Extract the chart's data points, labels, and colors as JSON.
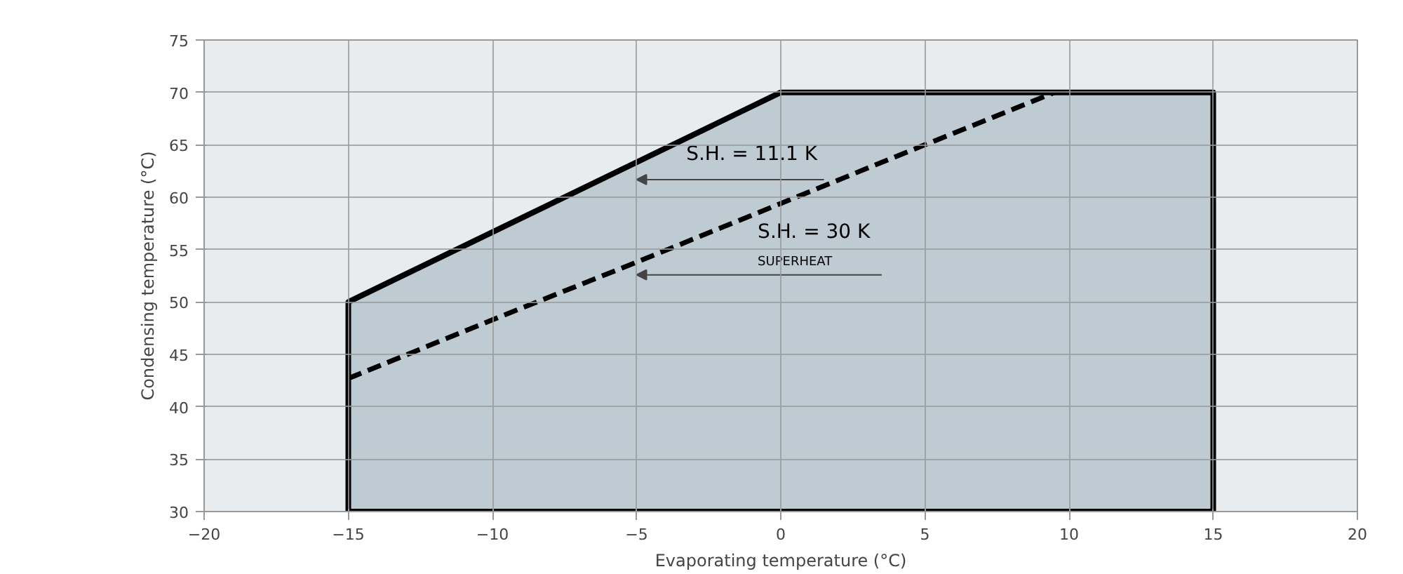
{
  "chart_data": {
    "type": "line",
    "xlabel": "Evaporating temperature (°C)",
    "ylabel": "Condensing temperature (°C)",
    "xlim": [
      -20,
      20
    ],
    "ylim": [
      30,
      75
    ],
    "xticks": [
      -20,
      -15,
      -10,
      -5,
      0,
      5,
      10,
      15,
      20
    ],
    "yticks": [
      30,
      35,
      40,
      45,
      50,
      55,
      60,
      65,
      70,
      75
    ],
    "grid": true,
    "series": [
      {
        "type": "area",
        "color": "#bfcbd3",
        "x": [
          -15,
          -15,
          0,
          15,
          15,
          -15
        ],
        "values": [
          30,
          50,
          70,
          70,
          30,
          30
        ]
      },
      {
        "line_style": "dashed",
        "color": "#000000",
        "x": [
          -15,
          -10,
          -5,
          0,
          5,
          9.5
        ],
        "values": [
          42.7,
          48.3,
          53.8,
          59.4,
          65,
          70
        ]
      }
    ],
    "annotations": [
      "S.H. = 11.1 K",
      "S.H. = 30 K",
      "SUPERHEAT"
    ]
  }
}
